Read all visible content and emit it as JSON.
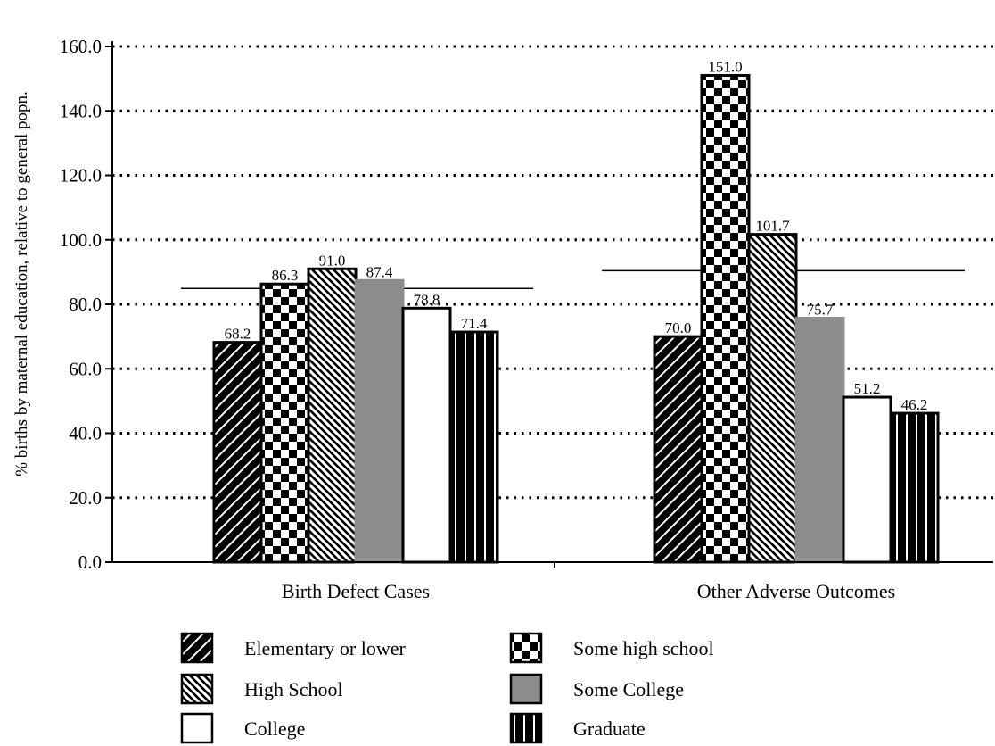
{
  "chart_data": {
    "type": "bar",
    "ylabel": "% births by maternal education, relative to general popn.",
    "ylim": [
      0,
      160
    ],
    "ytick_labels": [
      "0.0",
      "20.0",
      "40.0",
      "60.0",
      "80.0",
      "100.0",
      "120.0",
      "140.0",
      "160.0"
    ],
    "grid": "dotted horizontal",
    "categories": [
      "Birth Defect Cases",
      "Other Adverse Outcomes"
    ],
    "series": [
      {
        "name": "Elementary or lower",
        "values": [
          68.2,
          70.0
        ],
        "pattern": "diagonal-forward-white-on-black",
        "color": "#000000"
      },
      {
        "name": "Some high school",
        "values": [
          86.3,
          151.0
        ],
        "pattern": "checkerboard",
        "color": "#000000"
      },
      {
        "name": "High School",
        "values": [
          91.0,
          101.7
        ],
        "pattern": "diagonal-backward-dense",
        "color": "#000000"
      },
      {
        "name": "Some College",
        "values": [
          87.4,
          75.7
        ],
        "pattern": "solid-gray",
        "color": "#8c8c8c"
      },
      {
        "name": "College",
        "values": [
          78.8,
          51.2
        ],
        "pattern": "solid-white",
        "color": "#ffffff"
      },
      {
        "name": "Graduate",
        "values": [
          71.4,
          46.2
        ],
        "pattern": "vertical-stripes",
        "color": "#000000"
      }
    ],
    "data_labels": [
      [
        "68.2",
        "70.0"
      ],
      [
        "86.3",
        "151.0"
      ],
      [
        "91.0",
        "101.7"
      ],
      [
        "87.4",
        "75.7"
      ],
      [
        "78.8",
        "51.2"
      ],
      [
        "71.4",
        "46.2"
      ]
    ],
    "reference_lines": [
      84.9,
      90.4
    ],
    "legend_position": "bottom"
  }
}
